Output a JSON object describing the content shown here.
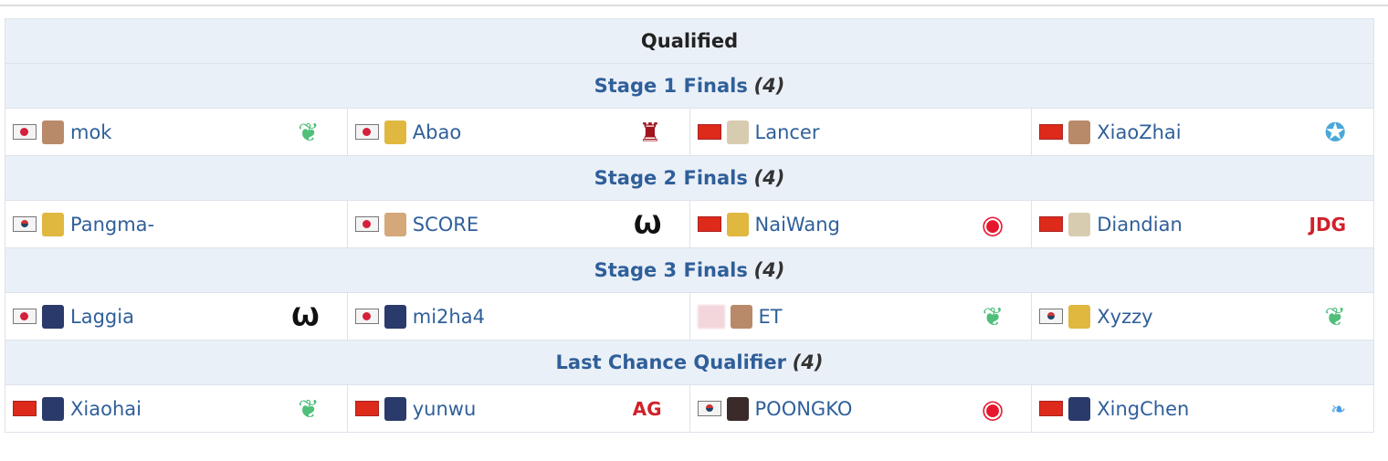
{
  "title": "Qualified",
  "sections": [
    {
      "label": "Stage 1 Finals",
      "count": "(4)",
      "players": [
        {
          "name": "mok",
          "flag": "jp",
          "avatar": "#b98a6a",
          "logo": "phoenix-logo",
          "logo_color": "#4fbf7a"
        },
        {
          "name": "Abao",
          "flag": "jp",
          "avatar": "#e0b840",
          "logo": "demon-logo",
          "logo_color": "#a0141e"
        },
        {
          "name": "Lancer",
          "flag": "cn",
          "avatar": "#d8ccb0",
          "logo": "",
          "logo_color": ""
        },
        {
          "name": "XiaoZhai",
          "flag": "cn",
          "avatar": "#b98a6a",
          "logo": "goggles-logo",
          "logo_color": "#4aa8d8"
        }
      ]
    },
    {
      "label": "Stage 2 Finals",
      "count": "(4)",
      "players": [
        {
          "name": "Pangma-",
          "flag": "kr",
          "avatar": "#e0b840",
          "logo": "",
          "logo_color": ""
        },
        {
          "name": "SCORE",
          "flag": "jp",
          "avatar": "#d4a878",
          "logo": "horns-logo",
          "logo_color": "#111111"
        },
        {
          "name": "NaiWang",
          "flag": "cn",
          "avatar": "#e0b840",
          "logo": "weibo-logo",
          "logo_color": "#e6162d"
        },
        {
          "name": "Diandian",
          "flag": "cn",
          "avatar": "#d8ccb0",
          "logo": "jdg-logo",
          "logo_color": "#d0212a"
        }
      ]
    },
    {
      "label": "Stage 3 Finals",
      "count": "(4)",
      "players": [
        {
          "name": "Laggia",
          "flag": "jp",
          "avatar": "#2a3a6a",
          "logo": "horns-logo",
          "logo_color": "#111111"
        },
        {
          "name": "mi2ha4",
          "flag": "jp",
          "avatar": "#2a3a6a",
          "logo": "",
          "logo_color": ""
        },
        {
          "name": "ET",
          "flag": "blur",
          "avatar": "#b98a6a",
          "logo": "phoenix-logo",
          "logo_color": "#4fbf7a"
        },
        {
          "name": "Xyzzy",
          "flag": "kr",
          "avatar": "#e0b840",
          "logo": "phoenix-logo",
          "logo_color": "#4fbf7a"
        }
      ]
    },
    {
      "label": "Last Chance Qualifier",
      "count": "(4)",
      "players": [
        {
          "name": "Xiaohai",
          "flag": "cn",
          "avatar": "#2a3a6a",
          "logo": "phoenix-logo",
          "logo_color": "#4fbf7a"
        },
        {
          "name": "yunwu",
          "flag": "cn",
          "avatar": "#2a3a6a",
          "logo": "ag-logo",
          "logo_color": "#d0212a"
        },
        {
          "name": "POONGKO",
          "flag": "kr",
          "avatar": "#3a2a2a",
          "logo": "weibo-logo",
          "logo_color": "#e6162d"
        },
        {
          "name": "XingChen",
          "flag": "cn",
          "avatar": "#2a3a6a",
          "logo": "dragon-logo",
          "logo_color": "#4a9ae0"
        }
      ]
    }
  ]
}
